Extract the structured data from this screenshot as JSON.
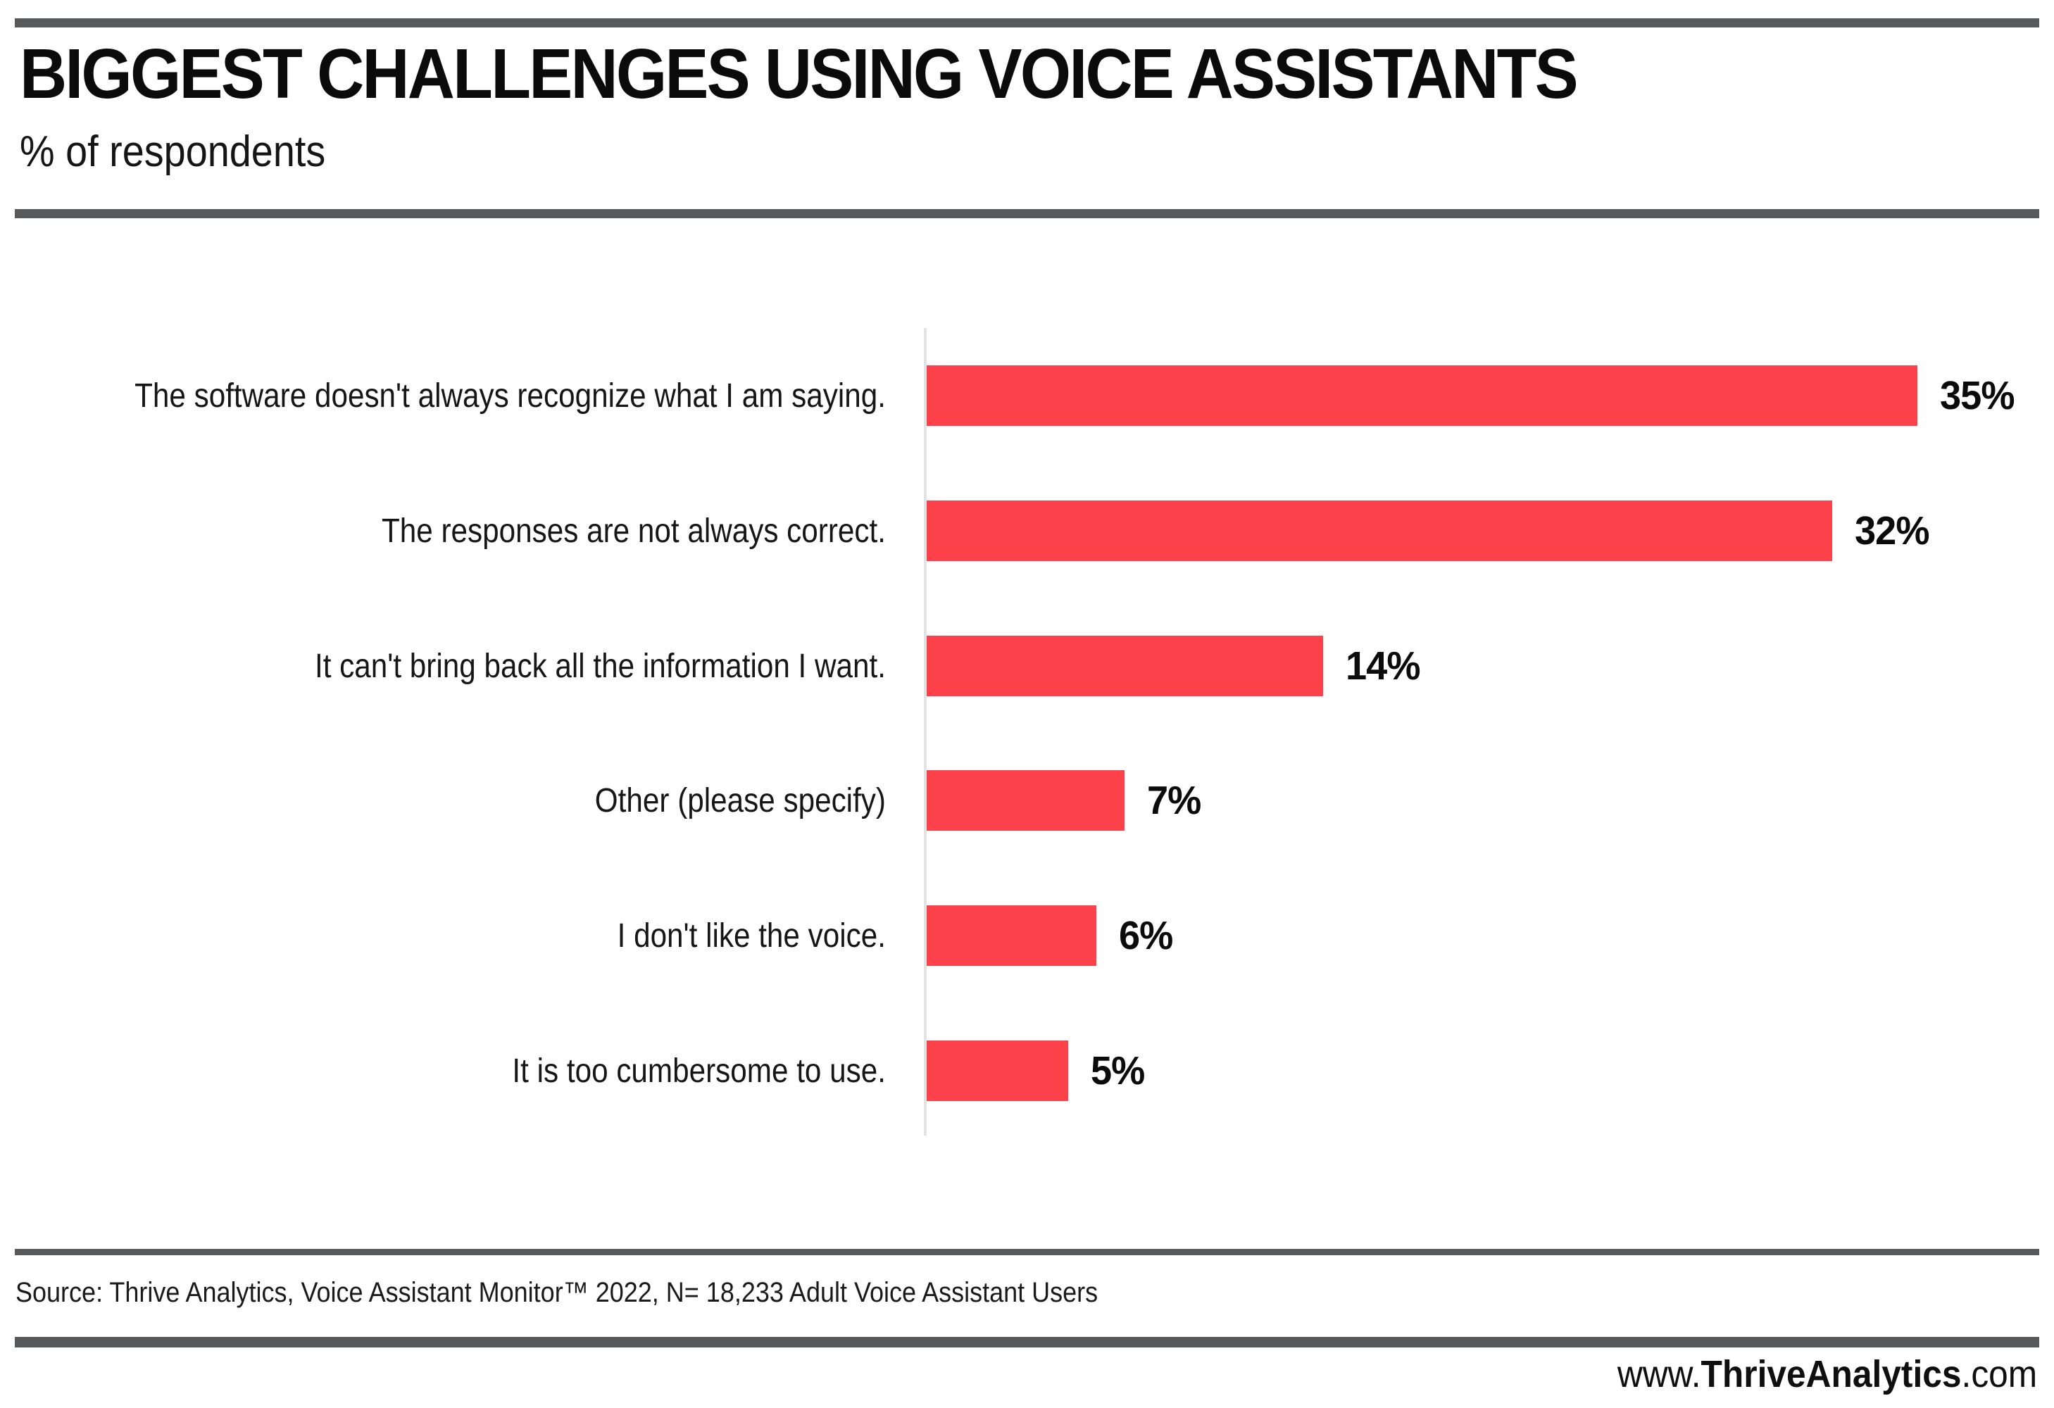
{
  "header": {
    "title": "BIGGEST CHALLENGES USING VOICE ASSISTANTS",
    "subtitle": "% of respondents"
  },
  "chart_data": {
    "type": "bar",
    "orientation": "horizontal",
    "title": "BIGGEST CHALLENGES USING VOICE ASSISTANTS",
    "subtitle": "% of respondents",
    "xlabel": "",
    "ylabel": "",
    "categories": [
      "The software doesn't always recognize what I am saying.",
      "The responses are not always correct.",
      "It can't bring back all the information I want.",
      "Other (please specify)",
      "I don't like the voice.",
      "It is too cumbersome to use."
    ],
    "values": [
      35,
      32,
      14,
      7,
      6,
      5
    ],
    "value_labels": [
      "35%",
      "32%",
      "14%",
      "7%",
      "6%",
      "5%"
    ],
    "unit": "percent",
    "xlim": [
      0,
      36
    ],
    "grid": false,
    "legend": false,
    "bar_color": "#FC414B"
  },
  "source": {
    "text": "Source: Thrive Analytics, Voice Assistant Monitor™ 2022, N= 18,233 Adult Voice Assistant Users"
  },
  "website": {
    "prefix": "www.",
    "brand": "ThriveAnalytics",
    "suffix": ".com"
  },
  "colors": {
    "bar_red": "#FC414B",
    "divider_gray": "#58595B",
    "axis_gray": "#E3E3E3"
  }
}
